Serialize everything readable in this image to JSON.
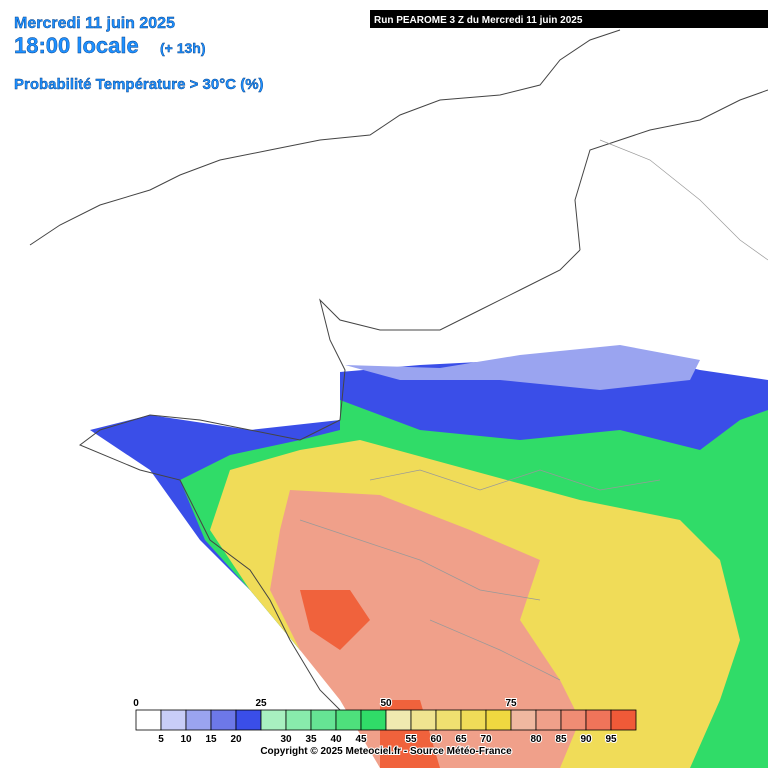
{
  "header": {
    "date": "Mercredi 11 juin 2025",
    "time": "18:00 locale",
    "lead": "(+ 13h)",
    "parameter": "Probabilité Température > 30°C (%)"
  },
  "run": "Run PEAROME 3 Z du Mercredi 11 juin 2025",
  "legend": {
    "colors": [
      "#ffffff",
      "#c8cdf8",
      "#9aa4f0",
      "#6d78e8",
      "#3a4ee8",
      "#a8f0c0",
      "#88ecac",
      "#66e494",
      "#4ee07c",
      "#30dc68",
      "#f0eab0",
      "#f0e490",
      "#f0e070",
      "#f0dc58",
      "#f0d840",
      "#f0b8a0",
      "#f0a08a",
      "#f08c74",
      "#f0745a",
      "#f05a38"
    ],
    "top_labels": [
      0,
      25,
      50,
      75
    ],
    "bottom_labels": [
      5,
      10,
      15,
      20,
      30,
      35,
      40,
      45,
      55,
      60,
      65,
      70,
      80,
      85,
      90,
      95
    ]
  },
  "copyright": "Copyright © 2025 Meteociel.fr - Source Météo-France"
}
